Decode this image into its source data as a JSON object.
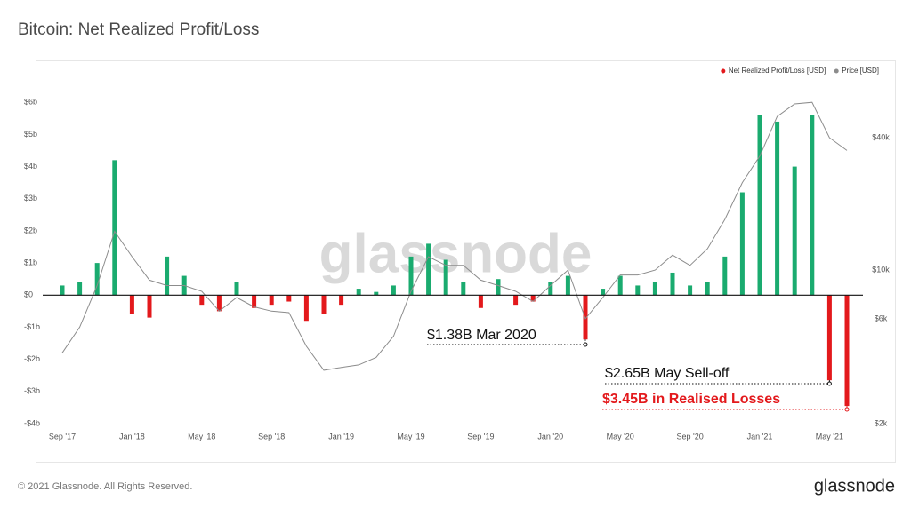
{
  "chart_data": {
    "type": "bar",
    "title": "Bitcoin: Net Realized Profit/Loss",
    "watermark": "glassnode",
    "categories": [
      "Sep '17",
      null,
      null,
      null,
      "Jan '18",
      null,
      null,
      null,
      "May '18",
      null,
      null,
      null,
      "Sep '18",
      null,
      null,
      null,
      "Jan '19",
      null,
      null,
      null,
      "May '19",
      null,
      null,
      null,
      "Sep '19",
      null,
      null,
      null,
      "Jan '20",
      null,
      null,
      null,
      "May '20",
      null,
      null,
      null,
      "Sep '20",
      null,
      null,
      null,
      "Jan '21",
      null,
      null,
      null,
      "May '21",
      null
    ],
    "series": [
      {
        "name": "Net Realized Profit/Loss [USD]",
        "color": "#e3191c",
        "positive_color": "#1aab6f",
        "values": [
          300000000,
          400000000,
          1000000000,
          4200000000,
          -600000000,
          -700000000,
          1200000000,
          600000000,
          -300000000,
          -500000000,
          400000000,
          -400000000,
          -300000000,
          -200000000,
          -800000000,
          -600000000,
          -300000000,
          200000000,
          100000000,
          300000000,
          1200000000,
          1600000000,
          1100000000,
          400000000,
          -400000000,
          500000000,
          -300000000,
          -200000000,
          400000000,
          600000000,
          -1380000000,
          200000000,
          600000000,
          300000000,
          400000000,
          700000000,
          300000000,
          400000000,
          1200000000,
          3200000000,
          5600000000,
          5400000000,
          4000000000,
          5600000000,
          -2650000000,
          -3450000000
        ]
      },
      {
        "name": "Price [USD]",
        "color": "#8c8c8c",
        "axis": "y2",
        "values": [
          4200,
          5500,
          8500,
          15000,
          11500,
          9000,
          8500,
          8500,
          8000,
          6500,
          7500,
          6800,
          6500,
          6400,
          4500,
          3500,
          3600,
          3700,
          4000,
          5000,
          8000,
          11500,
          10500,
          10500,
          9000,
          8500,
          8000,
          7200,
          8500,
          10000,
          6000,
          7500,
          9500,
          9500,
          10000,
          11700,
          10500,
          12500,
          17000,
          25000,
          33000,
          50000,
          57000,
          58000,
          40000,
          35000
        ]
      }
    ],
    "ylim": [
      -4000000000,
      6200000000
    ],
    "yticks": [
      {
        "value": 6000000000,
        "label": "$6b"
      },
      {
        "value": 5000000000,
        "label": "$5b"
      },
      {
        "value": 4000000000,
        "label": "$4b"
      },
      {
        "value": 3000000000,
        "label": "$3b"
      },
      {
        "value": 2000000000,
        "label": "$2b"
      },
      {
        "value": 1000000000,
        "label": "$1b"
      },
      {
        "value": 0,
        "label": "$0"
      },
      {
        "value": -1000000000,
        "label": "-$1b"
      },
      {
        "value": -2000000000,
        "label": "-$2b"
      },
      {
        "value": -3000000000,
        "label": "-$3b"
      },
      {
        "value": -4000000000,
        "label": "-$4b"
      }
    ],
    "y2lim": [
      2000,
      62000
    ],
    "y2_log": true,
    "y2ticks": [
      {
        "value": 40000,
        "label": "$40k"
      },
      {
        "value": 10000,
        "label": "$10k"
      },
      {
        "value": 6000,
        "label": "$6k"
      },
      {
        "value": 2000,
        "label": "$2k"
      }
    ],
    "legend": "top-right",
    "annotations": [
      "$1.38B Mar 2020",
      "$2.65B May Sell-off",
      "$3.45B in Realised Losses"
    ]
  },
  "footer": {
    "copyright": "© 2021 Glassnode. All Rights Reserved.",
    "logo": "glassnode"
  }
}
